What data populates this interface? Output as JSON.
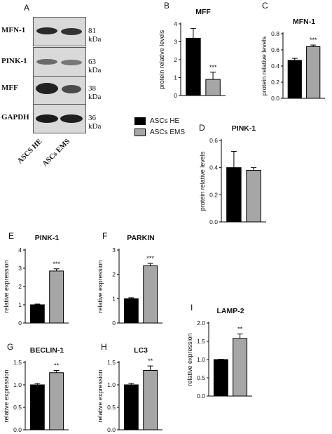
{
  "figure": {
    "colors": {
      "he": "#000000",
      "ems": "#a6a6a6"
    },
    "legend": [
      {
        "label": "ASCs HE",
        "color": "#000000"
      },
      {
        "label": "ASCs EMS",
        "color": "#a6a6a6"
      }
    ]
  },
  "blot": {
    "letter": "A",
    "rows": [
      {
        "protein": "MFN-1",
        "kda": "81 kDa"
      },
      {
        "protein": "PINK-1",
        "kda": "63 kDa"
      },
      {
        "protein": "MFF",
        "kda": "38 kDa"
      },
      {
        "protein": "GAPDH",
        "kda": "36 kDa"
      }
    ],
    "lanes": [
      "ASCS HE",
      "ASCs EMS"
    ]
  },
  "chart_data": [
    {
      "letter": "B",
      "type": "bar",
      "title": "MFF",
      "ylabel": "protein relative levels",
      "categories": [
        "ASCs HE",
        "ASCs EMS"
      ],
      "values": [
        3.2,
        0.9
      ],
      "errors": [
        0.55,
        0.4
      ],
      "ylim": [
        0,
        4
      ],
      "yticks": [
        "0",
        "1",
        "2",
        "3",
        "4"
      ],
      "significance": "***"
    },
    {
      "letter": "C",
      "type": "bar",
      "title": "MFN-1",
      "ylabel": "protein relative levels",
      "categories": [
        "ASCs HE",
        "ASCs EMS"
      ],
      "values": [
        0.47,
        0.64
      ],
      "errors": [
        0.025,
        0.02
      ],
      "ylim": [
        0,
        0.8
      ],
      "yticks": [
        "0.0",
        "0.2",
        "0.4",
        "0.6",
        "0.8"
      ],
      "significance": "***"
    },
    {
      "letter": "D",
      "type": "bar",
      "title": "PINK-1",
      "ylabel": "protein relative levels",
      "categories": [
        "ASCs HE",
        "ASCs EMS"
      ],
      "values": [
        0.4,
        0.38
      ],
      "errors": [
        0.12,
        0.02
      ],
      "ylim": [
        0,
        0.6
      ],
      "yticks": [
        "0.0",
        "0.2",
        "0.4",
        "0.6"
      ],
      "significance": ""
    },
    {
      "letter": "E",
      "type": "bar",
      "title": "PINK-1",
      "ylabel": "relative expression",
      "categories": [
        "ASCs HE",
        "ASCs EMS"
      ],
      "values": [
        1.0,
        2.85
      ],
      "errors": [
        0.04,
        0.12
      ],
      "ylim": [
        0,
        4
      ],
      "yticks": [
        "0",
        "1",
        "2",
        "3",
        "4"
      ],
      "significance": "***"
    },
    {
      "letter": "F",
      "type": "bar",
      "title": "PARKIN",
      "ylabel": "relative expression",
      "categories": [
        "ASCs HE",
        "ASCs EMS"
      ],
      "values": [
        1.0,
        2.35
      ],
      "errors": [
        0.04,
        0.1
      ],
      "ylim": [
        0,
        3
      ],
      "yticks": [
        "0",
        "1",
        "2",
        "3"
      ],
      "significance": "***"
    },
    {
      "letter": "G",
      "type": "bar",
      "title": "BECLIN-1",
      "ylabel": "relative expression",
      "categories": [
        "ASCs HE",
        "ASCs EMS"
      ],
      "values": [
        1.0,
        1.27
      ],
      "errors": [
        0.03,
        0.05
      ],
      "ylim": [
        0,
        1.5
      ],
      "yticks": [
        "0.0",
        "0.5",
        "1.0",
        "1.5"
      ],
      "significance": "**"
    },
    {
      "letter": "H",
      "type": "bar",
      "title": "LC3",
      "ylabel": "relative expression",
      "categories": [
        "ASCs HE",
        "ASCs EMS"
      ],
      "values": [
        1.0,
        1.32
      ],
      "errors": [
        0.03,
        0.1
      ],
      "ylim": [
        0,
        1.5
      ],
      "yticks": [
        "0.0",
        "0.5",
        "1.0",
        "1.5"
      ],
      "significance": "**"
    },
    {
      "letter": "I",
      "type": "bar",
      "title": "LAMP-2",
      "ylabel": "relative expression",
      "categories": [
        "ASCs HE",
        "ASCs EMS"
      ],
      "values": [
        1.0,
        1.58
      ],
      "errors": [
        0.01,
        0.12
      ],
      "ylim": [
        0,
        2.0
      ],
      "yticks": [
        "0.0",
        "0.5",
        "1.0",
        "1.5",
        "2.0"
      ],
      "significance": "**"
    }
  ]
}
